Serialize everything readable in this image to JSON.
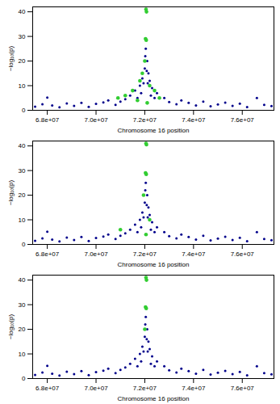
{
  "chart_data": [
    {
      "type": "scatter",
      "x_label": "Chromosome 16 position",
      "y_label": "−log₁₀(p)",
      "xlim": [
        67400000,
        77300000
      ],
      "ylim": [
        0,
        42
      ],
      "xticks": [
        {
          "value": 68000000,
          "label": "6.8e+07"
        },
        {
          "value": 70000000,
          "label": "7.0e+07"
        },
        {
          "value": 72000000,
          "label": "7.2e+07"
        },
        {
          "value": 74000000,
          "label": "7.4e+07"
        },
        {
          "value": 76000000,
          "label": "7.6e+07"
        }
      ],
      "yticks": [
        0,
        10,
        20,
        30,
        40
      ],
      "series": [
        {
          "color": "#00008b",
          "x": [
            67500000,
            67800000,
            68000000,
            68200000,
            68500000,
            68800000,
            69100000,
            69400000,
            69700000,
            70000000,
            70300000,
            70500000,
            70800000,
            71000000,
            71200000,
            71400000,
            71600000,
            71700000,
            71800000,
            71850000,
            71900000,
            71950000,
            72000000,
            72020000,
            72040000,
            72080000,
            72100000,
            72120000,
            72150000,
            72200000,
            72250000,
            72300000,
            72400000,
            72500000,
            72800000,
            73000000,
            73300000,
            73500000,
            73800000,
            74100000,
            74400000,
            74700000,
            75000000,
            75300000,
            75600000,
            75900000,
            76200000,
            76600000,
            76900000,
            77200000
          ],
          "values": [
            1.5,
            2.5,
            5.2,
            2,
            1.2,
            2.8,
            1.8,
            3,
            1.4,
            2.6,
            3.2,
            4,
            2.2,
            3.5,
            4.5,
            6,
            8,
            5,
            10,
            7,
            13,
            11,
            17,
            22,
            25,
            16,
            20,
            11,
            15,
            12,
            6,
            9,
            5,
            7,
            5,
            3.4,
            2.5,
            4,
            3,
            2,
            3.5,
            1.6,
            2.4,
            3.1,
            1.8,
            2.7,
            1.3,
            5,
            2.2,
            1.7
          ]
        },
        {
          "color": "#32cd32",
          "x": [
            72050000,
            72070000,
            72030000,
            72060000,
            72000000,
            71900000,
            71800000,
            71500000,
            71200000,
            72200000,
            72400000,
            72600000,
            71700000,
            72100000,
            70900000
          ],
          "values": [
            41,
            40,
            29,
            28.5,
            20,
            15,
            12,
            8,
            6,
            10,
            8,
            5,
            4,
            3,
            5
          ]
        }
      ]
    },
    {
      "type": "scatter",
      "x_label": "Chromosome 16 position",
      "y_label": "−log₁₀(p)",
      "xlim": [
        67400000,
        77300000
      ],
      "ylim": [
        0,
        42
      ],
      "xticks": [
        {
          "value": 68000000,
          "label": "6.8e+07"
        },
        {
          "value": 70000000,
          "label": "7.0e+07"
        },
        {
          "value": 72000000,
          "label": "7.2e+07"
        },
        {
          "value": 74000000,
          "label": "7.4e+07"
        },
        {
          "value": 76000000,
          "label": "7.6e+07"
        }
      ],
      "yticks": [
        0,
        10,
        20,
        30,
        40
      ],
      "series": [
        {
          "color": "#00008b",
          "x": [
            67500000,
            67800000,
            68000000,
            68200000,
            68500000,
            68800000,
            69100000,
            69400000,
            69700000,
            70000000,
            70300000,
            70500000,
            70800000,
            71000000,
            71200000,
            71400000,
            71600000,
            71700000,
            71800000,
            71850000,
            71900000,
            71950000,
            72000000,
            72020000,
            72040000,
            72080000,
            72100000,
            72120000,
            72150000,
            72200000,
            72250000,
            72300000,
            72400000,
            72500000,
            72800000,
            73000000,
            73300000,
            73500000,
            73800000,
            74100000,
            74400000,
            74700000,
            75000000,
            75300000,
            75600000,
            75900000,
            76200000,
            76600000,
            76900000,
            77200000
          ],
          "values": [
            1.5,
            2.5,
            5.2,
            2,
            1.2,
            2.8,
            1.8,
            3,
            1.4,
            2.6,
            3.2,
            4,
            2.2,
            3.5,
            4.5,
            6,
            8,
            5,
            10,
            7,
            13,
            11,
            17,
            22,
            25,
            16,
            20,
            11,
            15,
            12,
            6,
            9,
            5,
            7,
            5,
            3.4,
            2.5,
            4,
            3,
            2,
            3.5,
            1.6,
            2.4,
            3.1,
            1.8,
            2.7,
            1.3,
            5,
            2.2,
            1.7
          ]
        },
        {
          "color": "#32cd32",
          "x": [
            72050000,
            72070000,
            72030000,
            72060000,
            71950000,
            71000000,
            72200000,
            72050000
          ],
          "values": [
            41,
            40.5,
            29,
            28.5,
            20,
            6,
            10,
            4
          ]
        }
      ]
    },
    {
      "type": "scatter",
      "x_label": "Chromosome 16 position",
      "y_label": "−log₁₀(p)",
      "xlim": [
        67400000,
        77300000
      ],
      "ylim": [
        0,
        42
      ],
      "xticks": [
        {
          "value": 68000000,
          "label": "6.8e+07"
        },
        {
          "value": 70000000,
          "label": "7.0e+07"
        },
        {
          "value": 72000000,
          "label": "7.2e+07"
        },
        {
          "value": 74000000,
          "label": "7.4e+07"
        },
        {
          "value": 76000000,
          "label": "7.6e+07"
        }
      ],
      "yticks": [
        0,
        10,
        20,
        30,
        40
      ],
      "series": [
        {
          "color": "#00008b",
          "x": [
            67500000,
            67800000,
            68000000,
            68200000,
            68500000,
            68800000,
            69100000,
            69400000,
            69700000,
            70000000,
            70300000,
            70500000,
            70800000,
            71000000,
            71200000,
            71400000,
            71600000,
            71700000,
            71800000,
            71850000,
            71900000,
            71950000,
            72000000,
            72020000,
            72040000,
            72080000,
            72100000,
            72120000,
            72150000,
            72200000,
            72250000,
            72300000,
            72400000,
            72500000,
            72800000,
            73000000,
            73300000,
            73500000,
            73800000,
            74100000,
            74400000,
            74700000,
            75000000,
            75300000,
            75600000,
            75900000,
            76200000,
            76600000,
            76900000,
            77200000
          ],
          "values": [
            1.5,
            2.5,
            5.2,
            2,
            1.2,
            2.8,
            1.8,
            3,
            1.4,
            2.6,
            3.2,
            4,
            2.2,
            3.5,
            4.5,
            6,
            8,
            5,
            10,
            7,
            13,
            11,
            17,
            22,
            25,
            16,
            20,
            11,
            15,
            12,
            6,
            9,
            5,
            7,
            5,
            3.4,
            2.5,
            4,
            3,
            2,
            3.5,
            1.6,
            2.4,
            3.1,
            1.8,
            2.7,
            1.3,
            5,
            2.2,
            1.7
          ]
        },
        {
          "color": "#32cd32",
          "x": [
            72050000,
            72070000,
            72030000,
            72060000,
            72000000
          ],
          "values": [
            41,
            40,
            29,
            28.5,
            20
          ]
        }
      ]
    }
  ]
}
